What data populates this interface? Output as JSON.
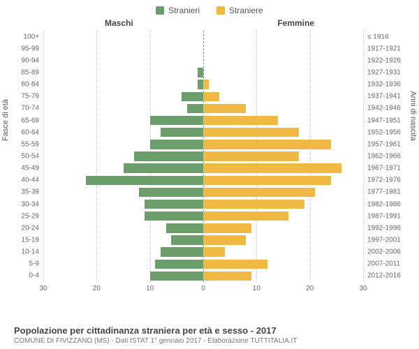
{
  "legend": {
    "male": {
      "label": "Stranieri",
      "color": "#6b9e6b"
    },
    "female": {
      "label": "Straniere",
      "color": "#f0b944"
    }
  },
  "chart": {
    "type": "population-pyramid",
    "gender_labels": {
      "left": "Maschi",
      "right": "Femmine"
    },
    "y_axis_left_title": "Fasce di età",
    "y_axis_right_title": "Anni di nascita",
    "x_axis": {
      "max": 30,
      "ticks_left": [
        30,
        20,
        10,
        0
      ],
      "ticks_right": [
        0,
        10,
        20,
        30
      ]
    },
    "grid_color": "#cccccc",
    "center_line_color": "#888888",
    "background_color": "#ffffff",
    "bar_gap_ratio": 0.22,
    "label_fontsize": 10,
    "rows": [
      {
        "age": "100+",
        "birth": "≤ 1916",
        "m": 0,
        "f": 0
      },
      {
        "age": "95-99",
        "birth": "1917-1921",
        "m": 0,
        "f": 0
      },
      {
        "age": "90-94",
        "birth": "1922-1926",
        "m": 0,
        "f": 0
      },
      {
        "age": "85-89",
        "birth": "1927-1931",
        "m": 1,
        "f": 0
      },
      {
        "age": "80-84",
        "birth": "1932-1936",
        "m": 1,
        "f": 1
      },
      {
        "age": "75-79",
        "birth": "1937-1941",
        "m": 4,
        "f": 3
      },
      {
        "age": "70-74",
        "birth": "1942-1946",
        "m": 3,
        "f": 8
      },
      {
        "age": "65-69",
        "birth": "1947-1951",
        "m": 10,
        "f": 14
      },
      {
        "age": "60-64",
        "birth": "1952-1956",
        "m": 8,
        "f": 18
      },
      {
        "age": "55-59",
        "birth": "1957-1961",
        "m": 10,
        "f": 24
      },
      {
        "age": "50-54",
        "birth": "1962-1966",
        "m": 13,
        "f": 18
      },
      {
        "age": "45-49",
        "birth": "1967-1971",
        "m": 15,
        "f": 26
      },
      {
        "age": "40-44",
        "birth": "1972-1976",
        "m": 22,
        "f": 24
      },
      {
        "age": "35-39",
        "birth": "1977-1981",
        "m": 12,
        "f": 21
      },
      {
        "age": "30-34",
        "birth": "1982-1986",
        "m": 11,
        "f": 19
      },
      {
        "age": "25-29",
        "birth": "1987-1991",
        "m": 11,
        "f": 16
      },
      {
        "age": "20-24",
        "birth": "1992-1996",
        "m": 7,
        "f": 9
      },
      {
        "age": "15-19",
        "birth": "1997-2001",
        "m": 6,
        "f": 8
      },
      {
        "age": "10-14",
        "birth": "2002-2006",
        "m": 8,
        "f": 4
      },
      {
        "age": "5-9",
        "birth": "2007-2011",
        "m": 9,
        "f": 12
      },
      {
        "age": "0-4",
        "birth": "2012-2016",
        "m": 10,
        "f": 9
      }
    ]
  },
  "footer": {
    "title": "Popolazione per cittadinanza straniera per età e sesso - 2017",
    "subtitle": "COMUNE DI FIVIZZANO (MS) - Dati ISTAT 1° gennaio 2017 - Elaborazione TUTTITALIA.IT"
  }
}
